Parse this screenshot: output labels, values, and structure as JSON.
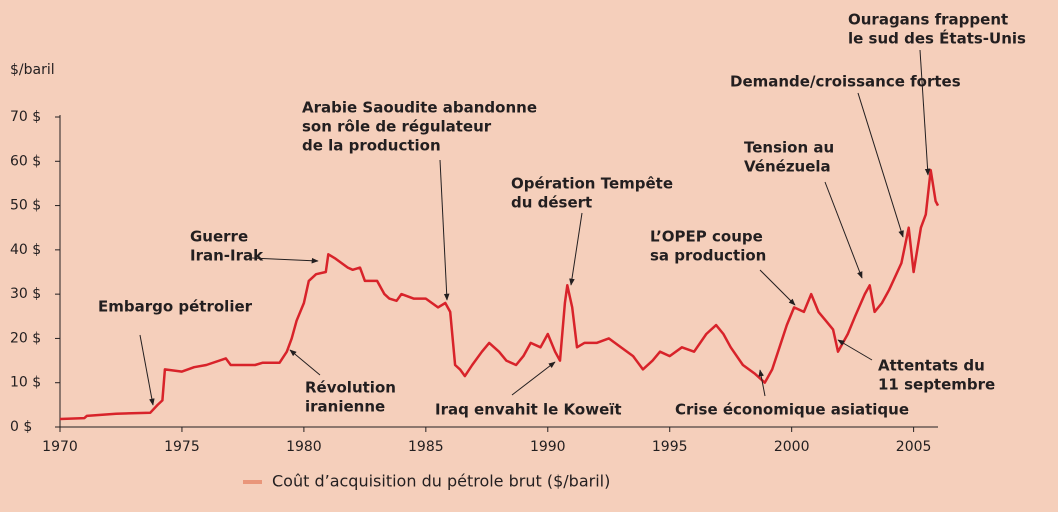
{
  "chart_data": {
    "type": "line",
    "y_label": "$/baril",
    "x": [
      1970,
      1971,
      1971.1,
      1972.3,
      1973.7,
      1974.0,
      1974.2,
      1974.3,
      1975,
      1975.5,
      1976,
      1976.8,
      1977,
      1978,
      1978.3,
      1979,
      1979.3,
      1979.5,
      1979.7,
      1980,
      1980.2,
      1980.5,
      1980.9,
      1981.0,
      1981.3,
      1981.8,
      1982,
      1982.3,
      1982.5,
      1983,
      1983.3,
      1983.5,
      1983.8,
      1984,
      1984.5,
      1985,
      1985.5,
      1985.8,
      1986,
      1986.2,
      1986.4,
      1986.6,
      1986.9,
      1987.3,
      1987.6,
      1988,
      1988.3,
      1988.7,
      1989,
      1989.3,
      1989.7,
      1990,
      1990.3,
      1990.5,
      1990.7,
      1990.8,
      1991.0,
      1991.2,
      1991.5,
      1992,
      1992.5,
      1993,
      1993.5,
      1993.9,
      1994.3,
      1994.6,
      1995,
      1995.5,
      1996,
      1996.5,
      1996.9,
      1997.2,
      1997.5,
      1998,
      1998.5,
      1998.9,
      1999.2,
      1999.5,
      1999.8,
      2000.1,
      2000.5,
      2000.8,
      2001.1,
      2001.4,
      2001.7,
      2001.9,
      2002.3,
      2002.6,
      2003.0,
      2003.2,
      2003.4,
      2003.7,
      2004.0,
      2004.5,
      2004.8,
      2005.0,
      2005.3,
      2005.5,
      2005.7,
      2005.9,
      2006.0
    ],
    "series": [
      {
        "name": "Coût d’acquisition du pétrole brut ($/baril)",
        "color": "#d8232a",
        "legend_color": "#e9967a",
        "values": [
          1.8,
          2.0,
          2.5,
          3.0,
          3.2,
          5,
          6,
          13,
          12.5,
          13.5,
          14,
          15.5,
          14,
          14,
          14.5,
          14.5,
          17,
          20,
          24,
          28,
          33,
          34.5,
          35,
          39,
          38,
          36,
          35.5,
          36,
          33,
          33,
          30,
          29,
          28.5,
          30,
          29,
          29,
          27,
          28,
          26,
          14,
          13,
          11.5,
          14,
          17,
          19,
          17,
          15,
          14,
          16,
          19,
          18,
          21,
          17,
          15,
          28,
          32,
          27,
          18,
          19,
          19,
          20,
          18,
          16,
          13,
          15,
          17,
          16,
          18,
          17,
          21,
          23,
          21,
          18,
          14,
          12,
          10,
          13,
          18,
          23,
          27,
          26,
          30,
          26,
          24,
          22,
          17,
          21,
          25,
          30,
          32,
          26,
          28,
          31,
          37,
          45,
          35,
          45,
          48,
          58,
          51,
          50
        ]
      }
    ],
    "xlim": [
      1970,
      2006
    ],
    "xticks": [
      1970,
      1975,
      1980,
      1985,
      1990,
      1995,
      2000,
      2005
    ],
    "ylim": [
      0,
      70
    ],
    "yticks": [
      {
        "value": 0,
        "label": "0 $"
      },
      {
        "value": 10,
        "label": "10 $"
      },
      {
        "value": 20,
        "label": "20 $"
      },
      {
        "value": 30,
        "label": "30 $"
      },
      {
        "value": 40,
        "label": "40 $"
      },
      {
        "value": 50,
        "label": "50 $"
      },
      {
        "value": 60,
        "label": "60 $"
      },
      {
        "value": 70,
        "label": "70 $"
      }
    ],
    "annotations": [
      [
        "Embargo pétrolier"
      ],
      [
        "Guerre",
        "Iran-Irak"
      ],
      [
        "Révolution",
        "iranienne"
      ],
      [
        "Arabie Saoudite abandonne",
        "son rôle de régulateur",
        "de la production"
      ],
      [
        "Opération Tempête",
        "du désert"
      ],
      [
        "Iraq envahit le Koweït"
      ],
      [
        "L’OPEP coupe",
        "sa production"
      ],
      [
        "Tension au",
        "Vénézuela"
      ],
      [
        "Demande/croissance fortes"
      ],
      [
        "Ouragans frappent",
        "le sud des États-Unis"
      ],
      [
        "Attentats du",
        "11 septembre"
      ],
      [
        "Crise économique asiatique"
      ]
    ]
  }
}
